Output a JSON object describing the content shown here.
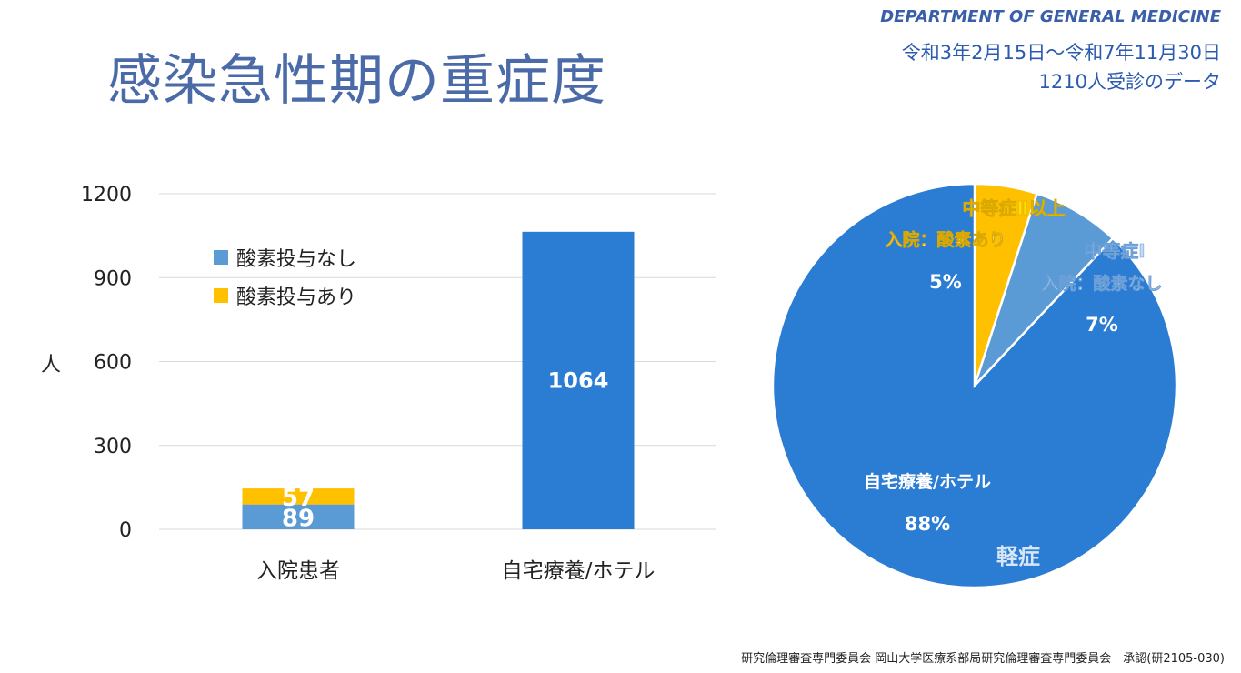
{
  "header": {
    "title": "感染急性期の重症度",
    "department": "DEPARTMENT OF GENERAL MEDICINE",
    "period": "令和3年2月15日～令和7年11月30日",
    "count_note": "1210人受診のデータ"
  },
  "footer": "研究倫理審査専門委員会 岡山大学医療系部局研究倫理審査専門委員会　承認(研2105-030)",
  "chart_data": [
    {
      "type": "bar",
      "stacked": true,
      "categories": [
        "入院患者",
        "自宅療養/ホテル"
      ],
      "series": [
        {
          "name": "酸素投与なし",
          "values": [
            89,
            1064
          ],
          "color": "#5b9bd5"
        },
        {
          "name": "酸素投与あり",
          "values": [
            57,
            0
          ],
          "color": "#ffc000"
        }
      ],
      "bar_colors_override": {
        "自宅療養/ホテル": "#2b7cd3"
      },
      "ylabel": "人",
      "ylim": [
        0,
        1200
      ],
      "yticks": [
        0,
        300,
        600,
        900,
        1200
      ],
      "grid": true,
      "legend": "top-left"
    },
    {
      "type": "pie",
      "slices": [
        {
          "label_lines": [
            "中等症Ⅱ以上",
            "入院：酸素あり"
          ],
          "percent_label": "5%",
          "value": 5,
          "color": "#ffc000"
        },
        {
          "label_lines": [
            "中等症Ⅰ",
            "入院：酸素なし"
          ],
          "percent_label": "7%",
          "value": 7,
          "color": "#5b9bd5"
        },
        {
          "label_lines": [
            "自宅療養/ホテル"
          ],
          "percent_label": "88%",
          "extra_label": "軽症",
          "value": 88,
          "color": "#2b7cd3"
        }
      ]
    }
  ]
}
